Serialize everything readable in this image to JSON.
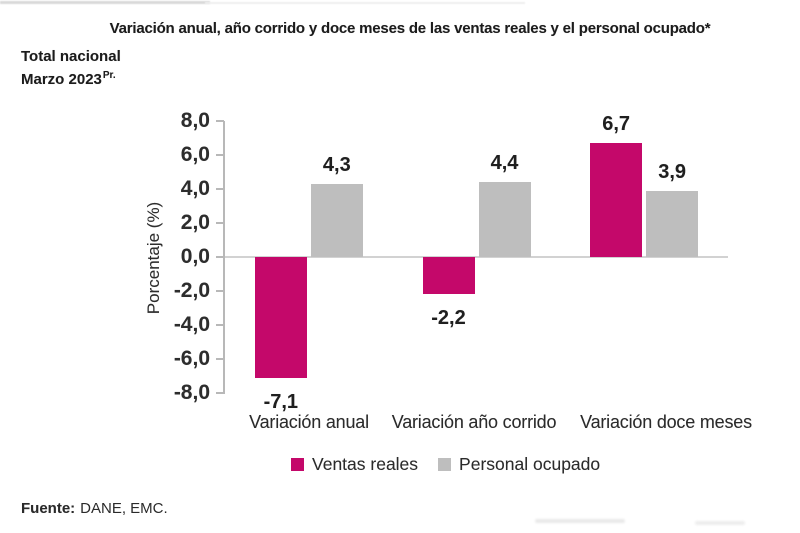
{
  "header": {
    "title": "Variación anual, año corrido y doce meses de las ventas reales y el personal ocupado*",
    "scope": "Total nacional",
    "period": "Marzo 2023",
    "period_superscript": "Pr."
  },
  "chart_data": {
    "type": "bar",
    "title": "Variación anual, año corrido y doce meses de las ventas reales y el personal ocupado*",
    "categories": [
      "Variación anual",
      "Variación año corrido",
      "Variación doce meses"
    ],
    "series": [
      {
        "name": "Ventas reales",
        "color": "#C4086A",
        "values": [
          -7.1,
          -2.2,
          6.7
        ],
        "value_labels": [
          "-7,1",
          "-2,2",
          "6,7"
        ]
      },
      {
        "name": "Personal ocupado",
        "color": "#BEBEBE",
        "values": [
          4.3,
          4.4,
          3.9
        ],
        "value_labels": [
          "4,3",
          "4,4",
          "3,9"
        ]
      }
    ],
    "xlabel": "",
    "ylabel": "Porcentaje (%)",
    "ylim": [
      -8,
      8
    ],
    "yticks": [
      8,
      6,
      4,
      2,
      0,
      -2,
      -4,
      -6,
      -8
    ],
    "ytick_labels": [
      "8,0",
      "6,0",
      "4,0",
      "2,0",
      "0,0",
      "-2,0",
      "-4,0",
      "-6,0",
      "-8,0"
    ],
    "grid": false,
    "legend_position": "bottom",
    "decimal_separator": ","
  },
  "footer": {
    "source_label": "Fuente:",
    "source_value": "DANE, EMC."
  }
}
